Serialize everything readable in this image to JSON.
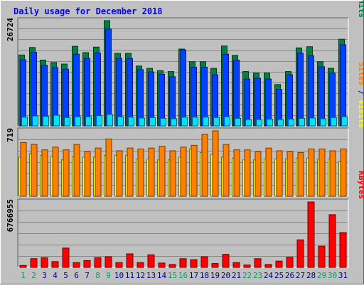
{
  "chart_data": {
    "title": "Daily usage for December 2018",
    "days": [
      "1",
      "2",
      "3",
      "4",
      "5",
      "6",
      "7",
      "8",
      "9",
      "10",
      "11",
      "12",
      "13",
      "14",
      "15",
      "16",
      "17",
      "18",
      "19",
      "20",
      "21",
      "22",
      "23",
      "24",
      "25",
      "26",
      "27",
      "28",
      "29",
      "30",
      "31"
    ],
    "weekend_days": [
      1,
      2,
      8,
      9,
      15,
      16,
      22,
      23,
      29,
      30
    ],
    "colors": {
      "background": "#c0c0c0",
      "title": "#0000ff",
      "hits": "#008040",
      "files": "#0040ff",
      "pages": "#00e0ff",
      "visits": "#ffff00",
      "sites": "#ff8000",
      "kbytes": "#ff0000",
      "weekend_label": "#00a060",
      "weekday_label": "#000080"
    },
    "panels": [
      {
        "type": "bar",
        "max_label": "26724",
        "ylim": [
          0,
          26724
        ],
        "legend": [
          {
            "label": "Pages",
            "color": "#00e0ff"
          },
          {
            "label": "Files",
            "color": "#0040ff"
          },
          {
            "label": "Hits",
            "color": "#008040"
          }
        ],
        "series": [
          {
            "name": "Hits",
            "color": "#008040",
            "values": [
              18000,
              19900,
              16700,
              16100,
              15700,
              20200,
              18600,
              20000,
              26724,
              18400,
              18400,
              15200,
              14600,
              14000,
              13800,
              19500,
              16300,
              16300,
              14600,
              20300,
              17900,
              13800,
              13400,
              13400,
              10500,
              13800,
              19800,
              20100,
              16300,
              14600,
              22000
            ]
          },
          {
            "name": "Files",
            "color": "#0040ff",
            "values": [
              16800,
              18700,
              15400,
              14800,
              14400,
              18200,
              17100,
              18500,
              24600,
              17100,
              17100,
              14300,
              13700,
              13100,
              12500,
              19300,
              14900,
              14900,
              13000,
              18200,
              16700,
              11900,
              12100,
              11900,
              9300,
              13000,
              18500,
              17800,
              15000,
              13400,
              20600
            ]
          },
          {
            "name": "Pages",
            "color": "#00e0ff",
            "values": [
              2200,
              2500,
              2400,
              2700,
              2100,
              2300,
              2300,
              2600,
              2900,
              2300,
              2200,
              2000,
              2100,
              1900,
              1800,
              2200,
              2200,
              2200,
              2100,
              2300,
              1900,
              1600,
              1600,
              1700,
              1600,
              1700,
              1900,
              2000,
              1800,
              2100,
              2300
            ]
          }
        ]
      },
      {
        "type": "bar",
        "max_label": "719",
        "ylim": [
          0,
          719
        ],
        "legend": [
          {
            "label": "Sites",
            "color": "#ff8000"
          },
          {
            "label": "Visits",
            "color": "#ffff00"
          }
        ],
        "series": [
          {
            "name": "Visits",
            "color": "#ffff00",
            "values": [
              430,
              470,
              450,
              440,
              400,
              440,
              430,
              430,
              450,
              450,
              450,
              410,
              410,
              400,
              400,
              430,
              520,
              480,
              460,
              430,
              420,
              400,
              400,
              410,
              410,
              410,
              420,
              420,
              410,
              410,
              380
            ]
          },
          {
            "name": "Sites",
            "color": "#ff8000",
            "values": [
              590,
              570,
              510,
              540,
              510,
              570,
              490,
              530,
              630,
              500,
              530,
              520,
              530,
              550,
              500,
              540,
              560,
              680,
              719,
              570,
              510,
              510,
              490,
              530,
              500,
              490,
              480,
              520,
              520,
              500,
              520
            ]
          }
        ]
      },
      {
        "type": "bar",
        "max_label": "6766955",
        "ylim": [
          0,
          6766955
        ],
        "legend": [
          {
            "label": "KBytes",
            "color": "#ff0000"
          }
        ],
        "series": [
          {
            "name": "KBytes",
            "color": "#ff0000",
            "values": [
              200000,
              900000,
              1000000,
              600000,
              2000000,
              500000,
              700000,
              1000000,
              1100000,
              500000,
              1400000,
              500000,
              1300000,
              450000,
              300000,
              900000,
              800000,
              1100000,
              400000,
              1350000,
              500000,
              250000,
              900000,
              300000,
              650000,
              1050000,
              2850000,
              6766955,
              2200000,
              5450000,
              3600000
            ]
          }
        ]
      }
    ]
  }
}
